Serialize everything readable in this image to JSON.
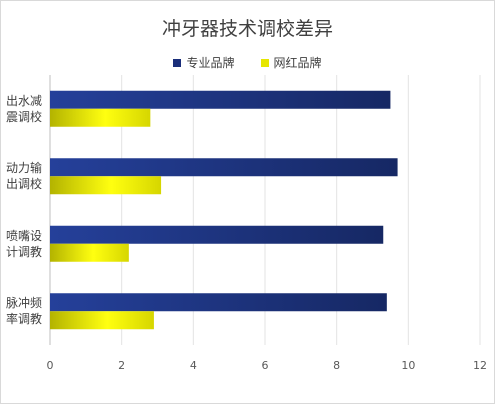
{
  "chart_data": {
    "type": "bar",
    "orientation": "horizontal",
    "title": "冲牙器技术调校差异",
    "categories": [
      "出水减震调校",
      "动力输出调校",
      "喷嘴设计调教",
      "脉冲频率调教"
    ],
    "category_lines": [
      [
        "出水减",
        "震调校"
      ],
      [
        "动力输",
        "出调校"
      ],
      [
        "喷嘴设",
        "计调教"
      ],
      [
        "脉冲频",
        "率调教"
      ]
    ],
    "series": [
      {
        "name": "专业品牌",
        "values": [
          9.5,
          9.7,
          9.3,
          9.4
        ],
        "color": "#1a2e7a"
      },
      {
        "name": "网红品牌",
        "values": [
          2.8,
          3.1,
          2.2,
          2.9
        ],
        "color": "#e6e600"
      }
    ],
    "xlim": [
      0,
      12
    ],
    "xticks": [
      "0",
      "2",
      "4",
      "6",
      "8",
      "10",
      "12"
    ],
    "grid": true,
    "legend_position": "top"
  }
}
